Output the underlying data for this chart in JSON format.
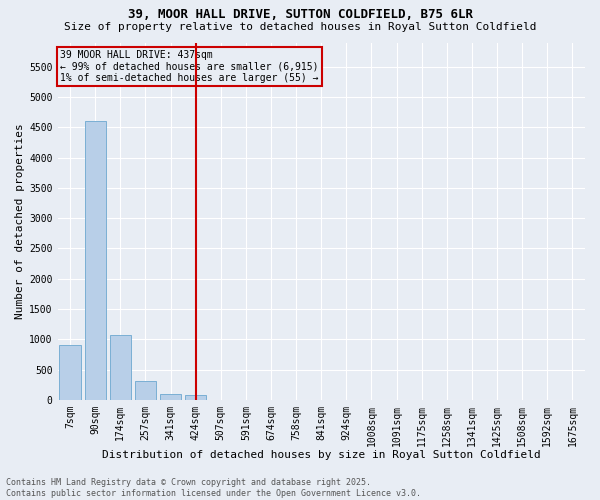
{
  "title1": "39, MOOR HALL DRIVE, SUTTON COLDFIELD, B75 6LR",
  "title2": "Size of property relative to detached houses in Royal Sutton Coldfield",
  "xlabel": "Distribution of detached houses by size in Royal Sutton Coldfield",
  "ylabel": "Number of detached properties",
  "footer": "Contains HM Land Registry data © Crown copyright and database right 2025.\nContains public sector information licensed under the Open Government Licence v3.0.",
  "categories": [
    "7sqm",
    "90sqm",
    "174sqm",
    "257sqm",
    "341sqm",
    "424sqm",
    "507sqm",
    "591sqm",
    "674sqm",
    "758sqm",
    "841sqm",
    "924sqm",
    "1008sqm",
    "1091sqm",
    "1175sqm",
    "1258sqm",
    "1341sqm",
    "1425sqm",
    "1508sqm",
    "1592sqm",
    "1675sqm"
  ],
  "values": [
    900,
    4600,
    1075,
    305,
    90,
    75,
    0,
    0,
    0,
    0,
    0,
    0,
    0,
    0,
    0,
    0,
    0,
    0,
    0,
    0,
    0
  ],
  "bar_color": "#b8cfe8",
  "bar_edge_color": "#7aafd4",
  "bg_color": "#e8edf4",
  "grid_color": "#ffffff",
  "vline_x": 5.0,
  "vline_color": "#cc0000",
  "annotation_text": "39 MOOR HALL DRIVE: 437sqm\n← 99% of detached houses are smaller (6,915)\n1% of semi-detached houses are larger (55) →",
  "annotation_box_color": "#cc0000",
  "ylim": [
    0,
    5900
  ],
  "yticks": [
    0,
    500,
    1000,
    1500,
    2000,
    2500,
    3000,
    3500,
    4000,
    4500,
    5000,
    5500
  ],
  "title1_fontsize": 9,
  "title2_fontsize": 8,
  "tick_fontsize": 7,
  "ylabel_fontsize": 8,
  "xlabel_fontsize": 8,
  "footer_fontsize": 6
}
